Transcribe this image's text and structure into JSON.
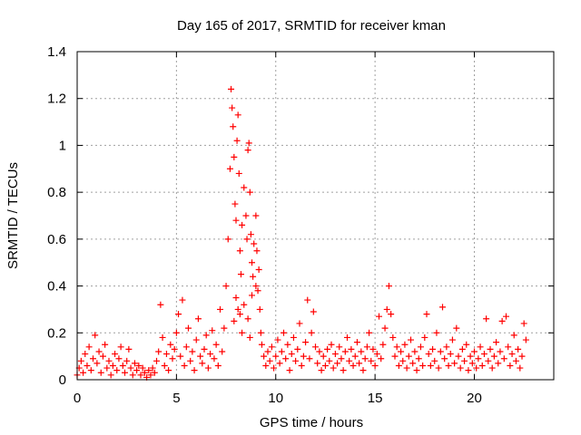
{
  "chart_data": {
    "type": "scatter",
    "title": "Day 165 of 2017, SRMTID for receiver kman",
    "xlabel": "GPS time / hours",
    "ylabel": "SRMTID / TECUs",
    "xlim": [
      0,
      24
    ],
    "ylim": [
      0,
      1.4
    ],
    "xticks": [
      0,
      5,
      10,
      15,
      20
    ],
    "yticks": [
      0,
      0.2,
      0.4,
      0.6,
      0.8,
      1,
      1.2,
      1.4
    ],
    "xtick_labels": [
      "0",
      "5",
      "10",
      "15",
      "20"
    ],
    "ytick_labels": [
      "0",
      "0.2",
      "0.4",
      "0.6",
      "0.8",
      "1",
      "1.2",
      "1.4"
    ],
    "grid": true,
    "marker": "+",
    "color": "#ff0000",
    "series": [
      {
        "points": [
          [
            0.0,
            0.02
          ],
          [
            0.1,
            0.05
          ],
          [
            0.2,
            0.08
          ],
          [
            0.3,
            0.03
          ],
          [
            0.4,
            0.11
          ],
          [
            0.5,
            0.06
          ],
          [
            0.6,
            0.14
          ],
          [
            0.7,
            0.04
          ],
          [
            0.8,
            0.09
          ],
          [
            0.9,
            0.19
          ],
          [
            1.0,
            0.07
          ],
          [
            1.1,
            0.12
          ],
          [
            1.2,
            0.03
          ],
          [
            1.3,
            0.1
          ],
          [
            1.4,
            0.15
          ],
          [
            1.5,
            0.05
          ],
          [
            1.6,
            0.08
          ],
          [
            1.7,
            0.02
          ],
          [
            1.8,
            0.06
          ],
          [
            1.9,
            0.11
          ],
          [
            2.0,
            0.04
          ],
          [
            2.1,
            0.09
          ],
          [
            2.2,
            0.14
          ],
          [
            2.3,
            0.06
          ],
          [
            2.4,
            0.03
          ],
          [
            2.5,
            0.08
          ],
          [
            2.6,
            0.13
          ],
          [
            2.7,
            0.05
          ],
          [
            2.8,
            0.02
          ],
          [
            2.9,
            0.07
          ],
          [
            3.0,
            0.04
          ],
          [
            3.1,
            0.06
          ],
          [
            3.2,
            0.02
          ],
          [
            3.3,
            0.05
          ],
          [
            3.4,
            0.03
          ],
          [
            3.5,
            0.01
          ],
          [
            3.6,
            0.04
          ],
          [
            3.7,
            0.02
          ],
          [
            3.8,
            0.05
          ],
          [
            3.9,
            0.03
          ],
          [
            4.0,
            0.08
          ],
          [
            4.1,
            0.12
          ],
          [
            4.2,
            0.32
          ],
          [
            4.3,
            0.18
          ],
          [
            4.4,
            0.06
          ],
          [
            4.5,
            0.11
          ],
          [
            4.6,
            0.04
          ],
          [
            4.7,
            0.15
          ],
          [
            4.8,
            0.09
          ],
          [
            4.9,
            0.13
          ],
          [
            5.0,
            0.2
          ],
          [
            5.1,
            0.28
          ],
          [
            5.2,
            0.1
          ],
          [
            5.3,
            0.34
          ],
          [
            5.4,
            0.06
          ],
          [
            5.5,
            0.14
          ],
          [
            5.6,
            0.22
          ],
          [
            5.7,
            0.08
          ],
          [
            5.8,
            0.12
          ],
          [
            5.9,
            0.04
          ],
          [
            6.0,
            0.17
          ],
          [
            6.1,
            0.26
          ],
          [
            6.2,
            0.1
          ],
          [
            6.3,
            0.07
          ],
          [
            6.4,
            0.13
          ],
          [
            6.5,
            0.19
          ],
          [
            6.6,
            0.05
          ],
          [
            6.7,
            0.11
          ],
          [
            6.8,
            0.21
          ],
          [
            6.9,
            0.09
          ],
          [
            7.0,
            0.15
          ],
          [
            7.1,
            0.06
          ],
          [
            7.2,
            0.3
          ],
          [
            7.3,
            0.12
          ],
          [
            7.4,
            0.22
          ],
          [
            7.5,
            0.4
          ],
          [
            7.6,
            0.6
          ],
          [
            7.7,
            0.9
          ],
          [
            7.75,
            1.24
          ],
          [
            7.8,
            1.16
          ],
          [
            7.85,
            1.08
          ],
          [
            7.9,
            0.95
          ],
          [
            7.95,
            0.75
          ],
          [
            8.0,
            0.68
          ],
          [
            8.05,
            1.02
          ],
          [
            8.1,
            1.13
          ],
          [
            8.15,
            0.88
          ],
          [
            8.2,
            0.55
          ],
          [
            8.25,
            0.45
          ],
          [
            8.3,
            0.66
          ],
          [
            8.4,
            0.82
          ],
          [
            8.5,
            0.7
          ],
          [
            8.55,
            0.6
          ],
          [
            8.6,
            0.98
          ],
          [
            8.65,
            1.01
          ],
          [
            8.7,
            0.8
          ],
          [
            8.75,
            0.62
          ],
          [
            8.8,
            0.5
          ],
          [
            8.85,
            0.44
          ],
          [
            8.9,
            0.58
          ],
          [
            9.0,
            0.7
          ],
          [
            9.05,
            0.55
          ],
          [
            9.1,
            0.38
          ],
          [
            9.15,
            0.47
          ],
          [
            9.2,
            0.3
          ],
          [
            9.25,
            0.2
          ],
          [
            9.3,
            0.15
          ],
          [
            9.4,
            0.1
          ],
          [
            9.5,
            0.06
          ],
          [
            9.6,
            0.12
          ],
          [
            8.0,
            0.35
          ],
          [
            8.2,
            0.28
          ],
          [
            8.4,
            0.32
          ],
          [
            8.6,
            0.26
          ],
          [
            8.8,
            0.36
          ],
          [
            9.0,
            0.4
          ],
          [
            8.3,
            0.2
          ],
          [
            8.7,
            0.18
          ],
          [
            7.9,
            0.25
          ],
          [
            8.1,
            0.3
          ],
          [
            9.7,
            0.08
          ],
          [
            9.8,
            0.14
          ],
          [
            9.9,
            0.05
          ],
          [
            10.0,
            0.1
          ],
          [
            10.1,
            0.17
          ],
          [
            10.2,
            0.07
          ],
          [
            10.3,
            0.12
          ],
          [
            10.4,
            0.2
          ],
          [
            10.5,
            0.09
          ],
          [
            10.6,
            0.15
          ],
          [
            10.7,
            0.04
          ],
          [
            10.8,
            0.11
          ],
          [
            10.9,
            0.18
          ],
          [
            11.0,
            0.08
          ],
          [
            11.1,
            0.13
          ],
          [
            11.2,
            0.24
          ],
          [
            11.3,
            0.06
          ],
          [
            11.4,
            0.1
          ],
          [
            11.5,
            0.16
          ],
          [
            11.6,
            0.34
          ],
          [
            11.7,
            0.09
          ],
          [
            11.8,
            0.2
          ],
          [
            11.9,
            0.29
          ],
          [
            12.0,
            0.14
          ],
          [
            12.1,
            0.07
          ],
          [
            12.2,
            0.12
          ],
          [
            12.3,
            0.04
          ],
          [
            12.4,
            0.1
          ],
          [
            12.5,
            0.06
          ],
          [
            12.6,
            0.13
          ],
          [
            12.7,
            0.08
          ],
          [
            12.8,
            0.15
          ],
          [
            12.9,
            0.05
          ],
          [
            13.0,
            0.11
          ],
          [
            13.1,
            0.07
          ],
          [
            13.2,
            0.14
          ],
          [
            13.3,
            0.09
          ],
          [
            13.4,
            0.04
          ],
          [
            13.5,
            0.12
          ],
          [
            13.6,
            0.18
          ],
          [
            13.7,
            0.08
          ],
          [
            13.8,
            0.13
          ],
          [
            13.9,
            0.06
          ],
          [
            14.0,
            0.1
          ],
          [
            14.1,
            0.16
          ],
          [
            14.2,
            0.07
          ],
          [
            14.3,
            0.12
          ],
          [
            14.4,
            0.04
          ],
          [
            14.5,
            0.09
          ],
          [
            14.6,
            0.14
          ],
          [
            14.7,
            0.2
          ],
          [
            14.8,
            0.08
          ],
          [
            14.9,
            0.13
          ],
          [
            15.0,
            0.06
          ],
          [
            15.1,
            0.11
          ],
          [
            15.2,
            0.27
          ],
          [
            15.3,
            0.09
          ],
          [
            15.4,
            0.15
          ],
          [
            15.5,
            0.22
          ],
          [
            15.6,
            0.3
          ],
          [
            15.7,
            0.4
          ],
          [
            15.8,
            0.28
          ],
          [
            15.9,
            0.18
          ],
          [
            16.0,
            0.1
          ],
          [
            16.1,
            0.14
          ],
          [
            16.2,
            0.06
          ],
          [
            16.3,
            0.12
          ],
          [
            16.4,
            0.08
          ],
          [
            16.5,
            0.15
          ],
          [
            16.6,
            0.05
          ],
          [
            16.7,
            0.1
          ],
          [
            16.8,
            0.17
          ],
          [
            16.9,
            0.07
          ],
          [
            17.0,
            0.12
          ],
          [
            17.1,
            0.04
          ],
          [
            17.2,
            0.09
          ],
          [
            17.3,
            0.14
          ],
          [
            17.4,
            0.06
          ],
          [
            17.5,
            0.18
          ],
          [
            17.6,
            0.28
          ],
          [
            17.7,
            0.11
          ],
          [
            17.8,
            0.06
          ],
          [
            17.9,
            0.13
          ],
          [
            18.0,
            0.08
          ],
          [
            18.1,
            0.2
          ],
          [
            18.2,
            0.05
          ],
          [
            18.3,
            0.12
          ],
          [
            18.4,
            0.31
          ],
          [
            18.5,
            0.09
          ],
          [
            18.6,
            0.14
          ],
          [
            18.7,
            0.06
          ],
          [
            18.8,
            0.11
          ],
          [
            18.9,
            0.17
          ],
          [
            19.0,
            0.07
          ],
          [
            19.1,
            0.22
          ],
          [
            19.2,
            0.1
          ],
          [
            19.3,
            0.05
          ],
          [
            19.4,
            0.13
          ],
          [
            19.5,
            0.08
          ],
          [
            19.6,
            0.15
          ],
          [
            19.7,
            0.04
          ],
          [
            19.8,
            0.1
          ],
          [
            19.9,
            0.07
          ],
          [
            20.0,
            0.12
          ],
          [
            20.1,
            0.05
          ],
          [
            20.2,
            0.09
          ],
          [
            20.3,
            0.14
          ],
          [
            20.4,
            0.06
          ],
          [
            20.5,
            0.11
          ],
          [
            20.6,
            0.26
          ],
          [
            20.7,
            0.08
          ],
          [
            20.8,
            0.13
          ],
          [
            20.9,
            0.05
          ],
          [
            21.0,
            0.1
          ],
          [
            21.1,
            0.16
          ],
          [
            21.2,
            0.07
          ],
          [
            21.3,
            0.12
          ],
          [
            21.4,
            0.25
          ],
          [
            21.5,
            0.09
          ],
          [
            21.6,
            0.27
          ],
          [
            21.7,
            0.14
          ],
          [
            21.8,
            0.06
          ],
          [
            21.9,
            0.11
          ],
          [
            22.0,
            0.19
          ],
          [
            22.1,
            0.08
          ],
          [
            22.2,
            0.13
          ],
          [
            22.3,
            0.05
          ],
          [
            22.4,
            0.1
          ],
          [
            22.5,
            0.24
          ],
          [
            22.6,
            0.17
          ]
        ]
      }
    ]
  }
}
